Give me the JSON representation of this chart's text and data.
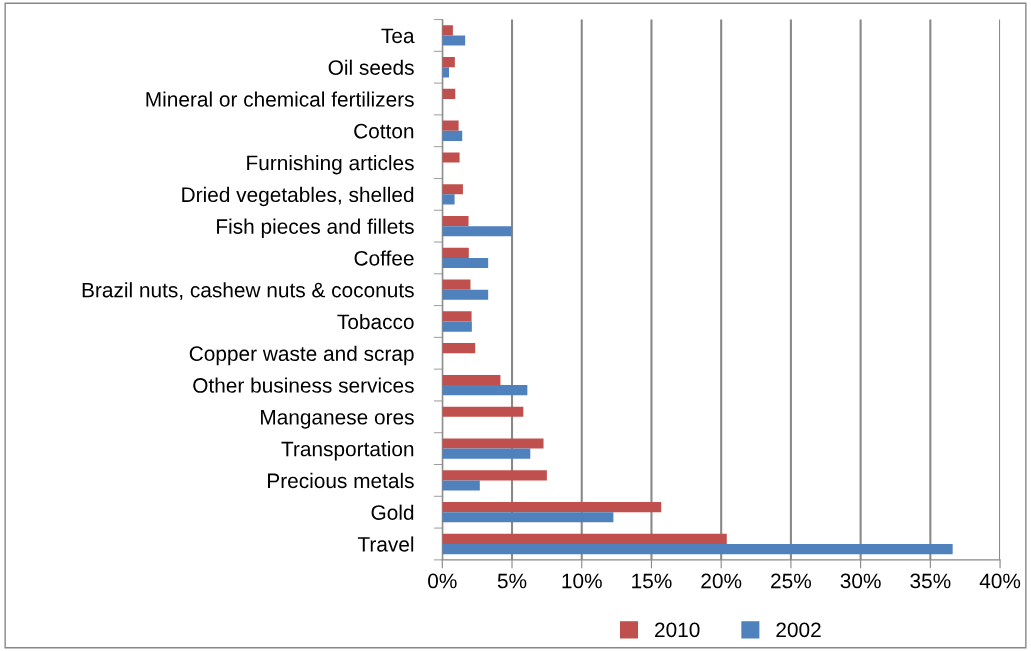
{
  "chart_data": {
    "type": "bar",
    "orientation": "horizontal",
    "categories": [
      "Tea",
      "Oil seeds",
      "Mineral or chemical fertilizers",
      "Cotton",
      "Furnishing articles",
      "Dried vegetables, shelled",
      "Fish pieces and fillets",
      "Coffee",
      "Brazil nuts, cashew nuts & coconuts",
      "Tobacco",
      "Copper waste and scrap",
      "Other business services",
      "Manganese ores",
      "Transportation",
      "Precious metals",
      "Gold",
      "Travel"
    ],
    "series": [
      {
        "name": "2010",
        "color": "#c0504d",
        "values": [
          0.76,
          0.9,
          0.93,
          1.17,
          1.24,
          1.48,
          1.88,
          1.9,
          2.02,
          2.1,
          2.36,
          4.17,
          5.81,
          7.26,
          7.5,
          15.7,
          20.4
        ]
      },
      {
        "name": "2002",
        "color": "#4f81bd",
        "values": [
          1.64,
          0.48,
          null,
          1.43,
          null,
          0.88,
          4.98,
          3.29,
          3.29,
          2.12,
          null,
          6.1,
          null,
          6.31,
          2.69,
          12.27,
          36.6
        ]
      }
    ],
    "xlim": [
      0,
      40
    ],
    "xticks": [
      {
        "value": 0,
        "label": "0%"
      },
      {
        "value": 5,
        "label": "5%"
      },
      {
        "value": 10,
        "label": "10%"
      },
      {
        "value": 15,
        "label": "15%"
      },
      {
        "value": 20,
        "label": "20%"
      },
      {
        "value": 25,
        "label": "25%"
      },
      {
        "value": 30,
        "label": "30%"
      },
      {
        "value": 35,
        "label": "35%"
      },
      {
        "value": 40,
        "label": "40%"
      }
    ],
    "grid": "x",
    "legend": "bottom"
  }
}
